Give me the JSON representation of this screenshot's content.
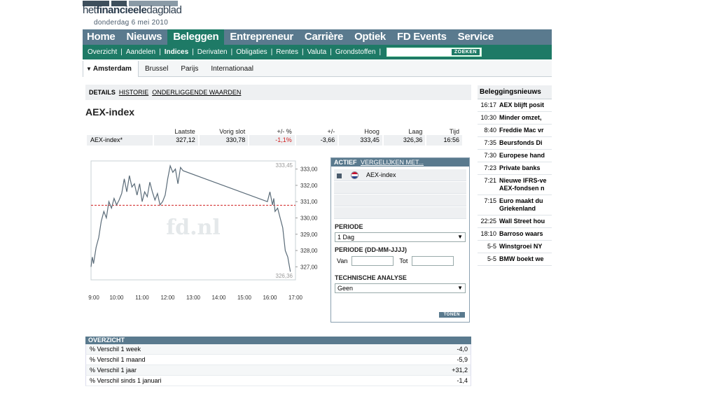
{
  "header": {
    "logo_text_a": "het",
    "logo_text_b": "financieele",
    "logo_text_c": "dagblad",
    "date": "donderdag 6 mei 2010"
  },
  "main_nav": [
    "Home",
    "Nieuws",
    "Beleggen",
    "Entrepreneur",
    "Carrière",
    "Optiek",
    "FD Events",
    "Service"
  ],
  "main_nav_active": "Beleggen",
  "sub_nav": [
    "Overzicht",
    "Aandelen",
    "Indices",
    "Derivaten",
    "Obligaties",
    "Rentes",
    "Valuta",
    "Grondstoffen"
  ],
  "sub_nav_active": "Indices",
  "search": {
    "button_label": "ZOEKEN",
    "placeholder": ""
  },
  "market_tabs": [
    "Amsterdam",
    "Brussel",
    "Parijs",
    "Internationaal"
  ],
  "market_tab_active": "Amsterdam",
  "details_tabs": {
    "details": "DETAILS",
    "historie": "HISTORIE",
    "onderliggende": "ONDERLIGGENDE WAARDEN"
  },
  "page_title": "AEX-index",
  "quote": {
    "headers": [
      "",
      "Laatste",
      "Vorig slot",
      "+/- %",
      "+/-",
      "Hoog",
      "Laag",
      "Tijd"
    ],
    "row": [
      "AEX-index*",
      "327,12",
      "330,78",
      "-1,1%",
      "-3,66",
      "333,45",
      "326,36",
      "16:56"
    ]
  },
  "chart_data": {
    "type": "line",
    "watermark": "fd.nl",
    "x_ticks": [
      "9:00",
      "10:00",
      "11:00",
      "12:00",
      "13:00",
      "14:00",
      "15:00",
      "16:00",
      "17:00"
    ],
    "y_ticks": [
      "333,00",
      "332,00",
      "331,00",
      "330,00",
      "329,00",
      "328,00",
      "327,00"
    ],
    "ylim": [
      326.2,
      333.5
    ],
    "high_label": "333,45",
    "low_label": "326,36",
    "reference_line": 330.78,
    "series": [
      {
        "x": [
          9.0,
          9.05,
          9.1,
          9.2,
          9.3,
          9.4,
          9.5,
          9.6,
          9.7,
          9.8,
          9.9,
          10.0,
          10.1,
          10.2,
          10.3,
          10.4,
          10.5,
          10.6,
          10.7,
          10.8,
          10.9,
          11.0,
          11.1,
          11.2,
          11.3,
          11.4,
          11.5,
          11.6,
          11.7,
          11.8,
          11.9,
          12.0,
          12.1,
          12.2,
          12.3,
          12.4,
          12.5,
          12.6,
          15.9,
          16.0,
          16.1,
          16.15,
          16.2,
          16.3,
          16.4,
          16.5,
          16.6,
          16.7,
          16.8
        ],
        "y": [
          327.0,
          327.6,
          327.2,
          328.2,
          328.8,
          329.8,
          330.4,
          330.0,
          331.0,
          330.6,
          331.2,
          330.8,
          331.1,
          331.5,
          332.4,
          331.6,
          332.6,
          331.9,
          332.1,
          331.4,
          332.1,
          331.0,
          331.6,
          331.3,
          332.2,
          331.6,
          331.1,
          331.5,
          330.8,
          331.0,
          331.4,
          332.4,
          333.2,
          332.8,
          333.0,
          332.1,
          333.1,
          332.9,
          331.0,
          331.6,
          330.8,
          331.2,
          330.4,
          330.6,
          330.0,
          329.4,
          328.0,
          327.6,
          326.7
        ]
      }
    ]
  },
  "actief": {
    "title": "ACTIEF",
    "compare_link": "VERGELIJKEN MET...",
    "item": "AEX-index",
    "periode_label": "PERIODE",
    "periode_value": "1 Dag",
    "periode_range_label": "PERIODE (DD-MM-JJJJ)",
    "van_label": "Van",
    "tot_label": "Tot",
    "ta_label": "TECHNISCHE ANALYSE",
    "ta_value": "Geen",
    "show_button": "TONEN"
  },
  "overzicht": {
    "title": "OVERZICHT",
    "rows": [
      {
        "label": "% Verschil 1 week",
        "value": "-4,0"
      },
      {
        "label": "% Verschil 1 maand",
        "value": "-5,9"
      },
      {
        "label": "% Verschil 1 jaar",
        "value": "+31,2"
      },
      {
        "label": "% Verschil sinds 1 januari",
        "value": "-1,4"
      }
    ]
  },
  "news": {
    "title": "Beleggingsnieuws",
    "items": [
      {
        "time": "16:17",
        "title": "AEX blijft posit"
      },
      {
        "time": "10:30",
        "title": "Minder omzet,"
      },
      {
        "time": "8:40",
        "title": "Freddie Mac vr"
      },
      {
        "time": "7:35",
        "title": "Beursfonds Di"
      },
      {
        "time": "7:30",
        "title": "Europese hand"
      },
      {
        "time": "7:23",
        "title": "Private banks"
      },
      {
        "time": "7:21",
        "title": "Nieuwe IFRS-ve AEX-fondsen n",
        "wrap": true
      },
      {
        "time": "7:15",
        "title": "Euro maakt du Griekenland",
        "wrap": true
      },
      {
        "time": "22:25",
        "title": "Wall Street hou"
      },
      {
        "time": "18:10",
        "title": "Barroso waars"
      },
      {
        "time": "5-5",
        "title": "Winstgroei NY"
      },
      {
        "time": "5-5",
        "title": "BMW boekt we"
      }
    ]
  }
}
